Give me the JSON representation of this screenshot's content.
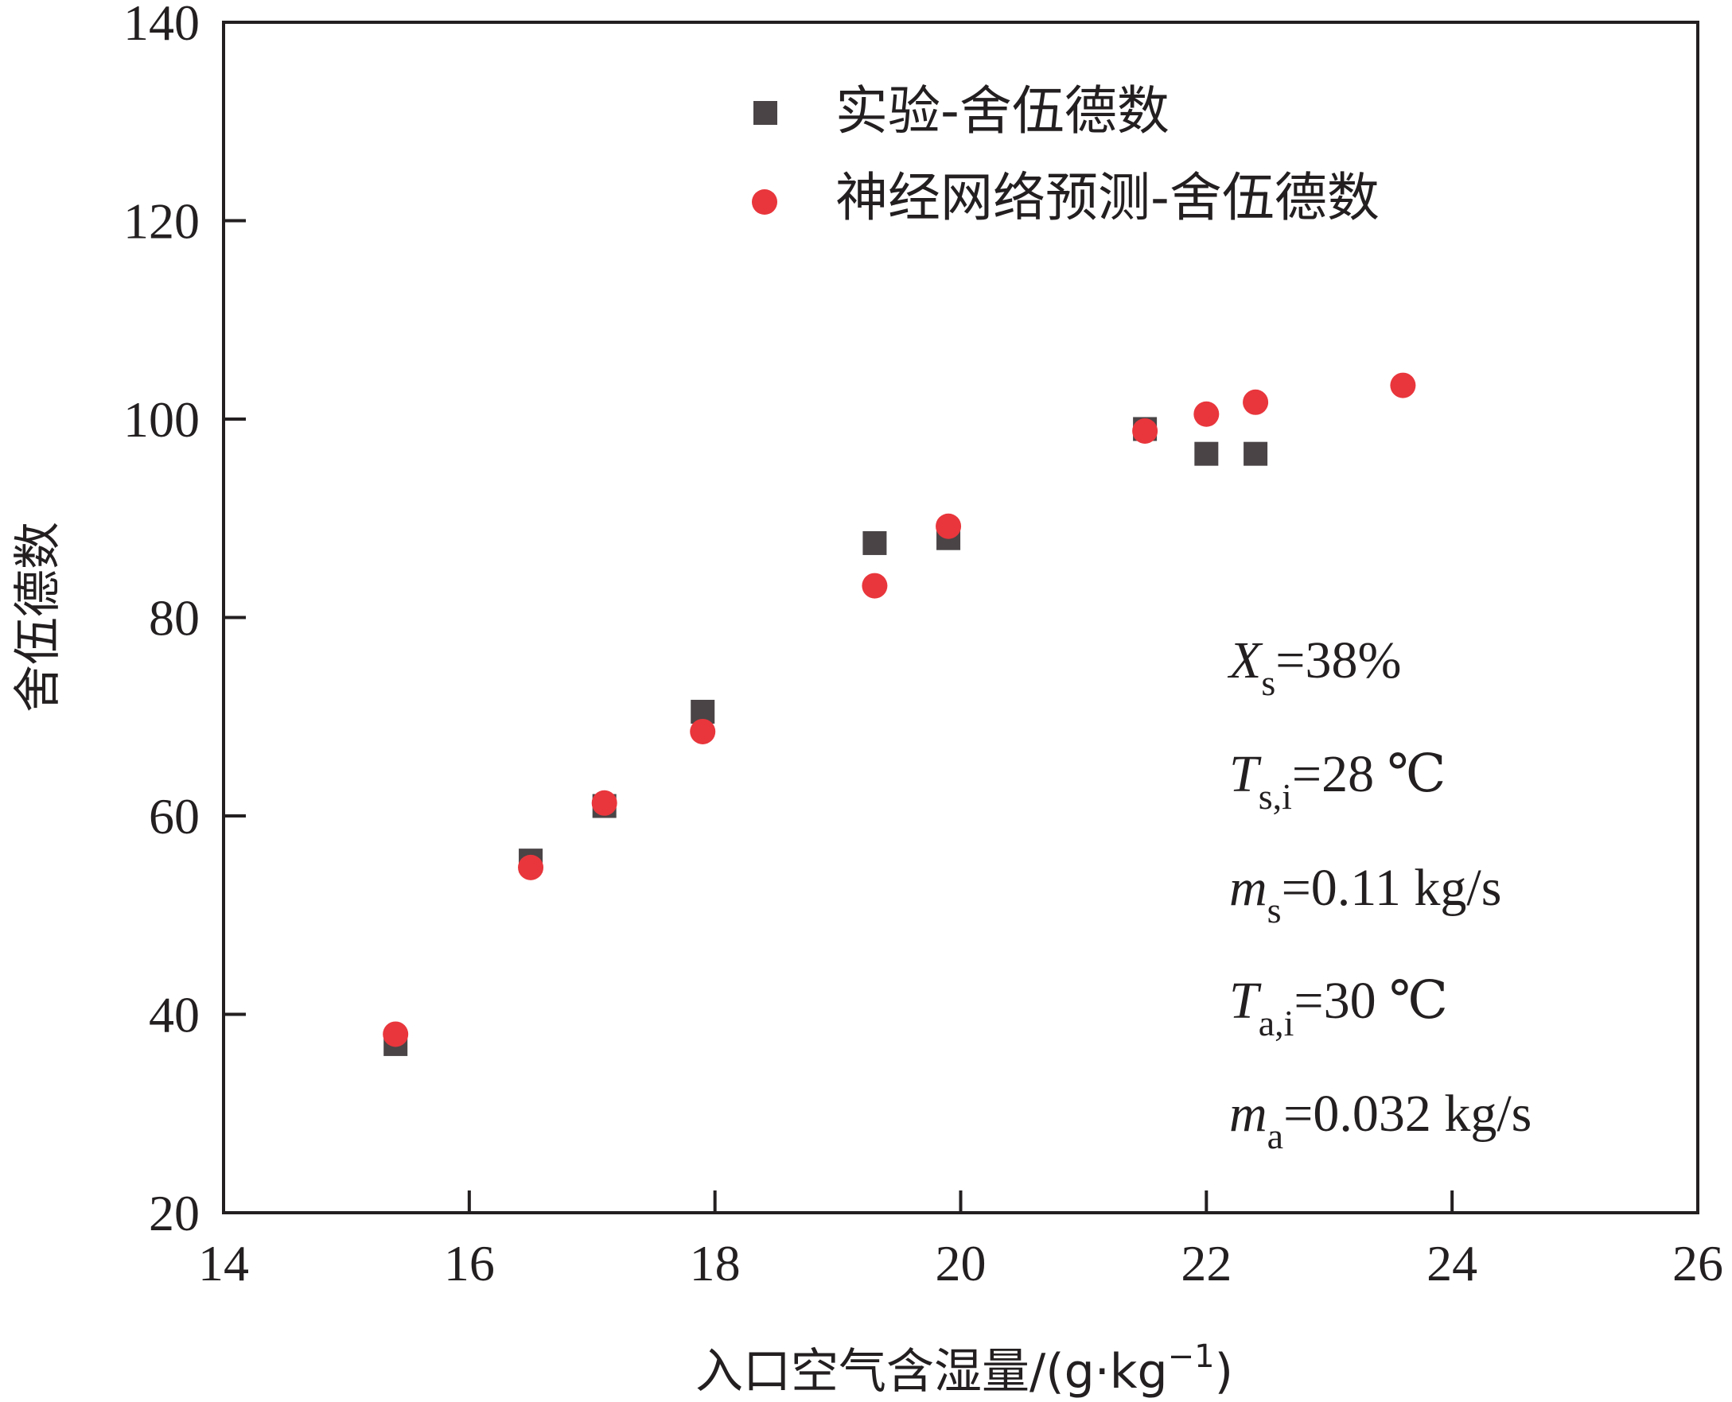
{
  "chart_data": {
    "type": "scatter",
    "xlabel": "入口空气含湿量/(g·kg",
    "xlabel_sup": "−1",
    "xlabel_close": ")",
    "ylabel": "舍伍德数",
    "xlim": [
      14,
      26
    ],
    "ylim": [
      20,
      140
    ],
    "x_ticks": [
      14,
      16,
      18,
      20,
      22,
      24,
      26
    ],
    "y_ticks": [
      20,
      40,
      60,
      80,
      100,
      120,
      140
    ],
    "legend_position": "top-center",
    "grid": false,
    "series": [
      {
        "name": "实验-舍伍德数",
        "marker": "square",
        "color": "#4a4446",
        "x": [
          15.4,
          16.5,
          17.1,
          17.9,
          19.3,
          19.9,
          21.5,
          22.0,
          22.4
        ],
        "y": [
          37.0,
          55.5,
          61.0,
          70.5,
          87.5,
          88.0,
          99.0,
          96.5,
          96.5
        ]
      },
      {
        "name": "神经网络预测-舍伍德数",
        "marker": "circle",
        "color": "#e8363c",
        "x": [
          15.4,
          16.5,
          17.1,
          17.9,
          19.3,
          19.9,
          21.5,
          22.0,
          22.4,
          23.6
        ],
        "y": [
          38.0,
          54.8,
          61.3,
          68.5,
          83.2,
          89.2,
          98.8,
          100.5,
          101.7,
          103.4
        ]
      }
    ],
    "annotations": [
      {
        "main": "X",
        "sub": "s",
        "rest": "=38%"
      },
      {
        "main": "T",
        "sub": "s,i",
        "rest": "=28 ℃"
      },
      {
        "main": "m",
        "sub": "s",
        "rest": "=0.11 kg/s"
      },
      {
        "main": "T",
        "sub": "a,i",
        "rest": "=30 ℃"
      },
      {
        "main": "m",
        "sub": "a",
        "rest": "=0.032 kg/s"
      }
    ]
  }
}
